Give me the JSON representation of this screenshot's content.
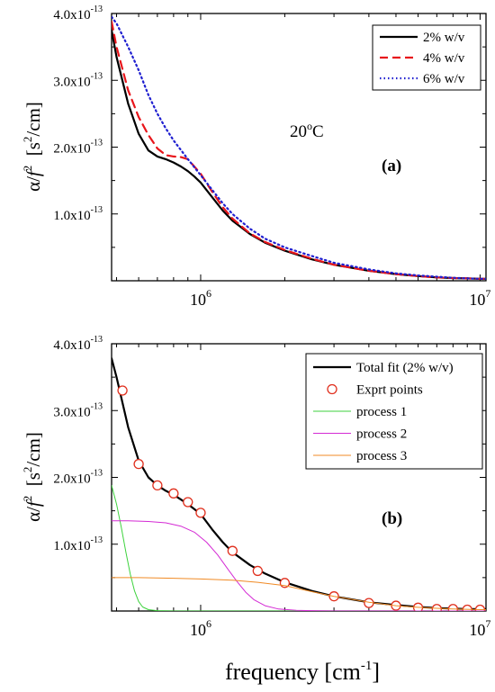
{
  "figure": {
    "xlabel_main": "frequency [cm",
    "xlabel_sup": "-1",
    "xlabel_end": "]"
  },
  "chart_data": [
    {
      "type": "line",
      "panel_label": "(a)",
      "annotation": "20",
      "annotation_sup": "o",
      "annotation_end": "C",
      "ylabel_prefix": "α/",
      "ylabel_f": "f",
      "ylabel_f_sup": "2",
      "ylabel_unit_open": "[s",
      "ylabel_unit_sup": "2",
      "ylabel_unit_end": "/cm]",
      "x_scale": "log",
      "xlim": [
        480000,
        10500000
      ],
      "ylim": [
        0,
        4e-13
      ],
      "x_ticks": [
        {
          "value": 1000000,
          "base": "10",
          "exp": "6"
        },
        {
          "value": 10000000,
          "base": "10",
          "exp": "7"
        }
      ],
      "y_ticks": [
        {
          "value": 1e-13,
          "mant": "1.0x10",
          "exp": "-13"
        },
        {
          "value": 2e-13,
          "mant": "2.0x10",
          "exp": "-13"
        },
        {
          "value": 3e-13,
          "mant": "3.0x10",
          "exp": "-13"
        },
        {
          "value": 4e-13,
          "mant": "4.0x10",
          "exp": "-13"
        }
      ],
      "legend_position": "top-right",
      "series": [
        {
          "name": "2% w/v",
          "color": "#000000",
          "style": "solid",
          "x": [
            480000,
            500000,
            550000,
            600000,
            650000,
            700000,
            750000,
            800000,
            850000,
            900000,
            950000,
            1000000,
            1100000,
            1200000,
            1300000,
            1500000,
            1700000,
            2000000,
            2500000,
            3000000,
            4000000,
            5000000,
            6000000,
            7000000,
            8000000,
            9000000,
            10000000,
            10500000
          ],
          "y": [
            3.75e-13,
            3.35e-13,
            2.65e-13,
            2.2e-13,
            1.95e-13,
            1.86e-13,
            1.82e-13,
            1.77e-13,
            1.71e-13,
            1.64e-13,
            1.56e-13,
            1.47e-13,
            1.25e-13,
            1.05e-13,
            9e-14,
            7e-14,
            5.7e-14,
            4.5e-14,
            3.2e-14,
            2.4e-14,
            1.5e-14,
            1e-14,
            7e-15,
            5e-15,
            4e-15,
            3.5e-15,
            3e-15,
            3e-15
          ]
        },
        {
          "name": "4% w/v",
          "color": "#e8151b",
          "style": "dashed",
          "x": [
            480000,
            500000,
            550000,
            600000,
            650000,
            700000,
            750000,
            800000,
            850000,
            900000,
            1000000,
            1100000,
            1200000,
            1300000,
            1500000,
            1700000,
            2000000,
            2500000,
            3000000,
            4000000,
            5000000,
            6000000,
            7000000,
            8000000,
            9000000,
            10000000,
            10500000
          ],
          "y": [
            3.88e-13,
            3.5e-13,
            2.85e-13,
            2.45e-13,
            2.18e-13,
            1.98e-13,
            1.88e-13,
            1.86e-13,
            1.85e-13,
            1.82e-13,
            1.6e-13,
            1.33e-13,
            1.1e-13,
            9.3e-14,
            7.1e-14,
            5.8e-14,
            4.6e-14,
            3.3e-14,
            2.4e-14,
            1.5e-14,
            1e-14,
            7e-15,
            5e-15,
            4e-15,
            3.5e-15,
            3e-15,
            3e-15
          ]
        },
        {
          "name": "6% w/v",
          "color": "#1f1fd0",
          "style": "dotted",
          "x": [
            480000,
            500000,
            550000,
            600000,
            650000,
            700000,
            750000,
            800000,
            900000,
            1000000,
            1100000,
            1200000,
            1300000,
            1500000,
            1700000,
            2000000,
            2500000,
            3000000,
            4000000,
            5000000,
            6000000,
            7000000,
            8000000,
            9000000,
            10000000,
            10500000
          ],
          "y": [
            3.95e-13,
            3.85e-13,
            3.5e-13,
            3.15e-13,
            2.78e-13,
            2.5e-13,
            2.28e-13,
            2.1e-13,
            1.82e-13,
            1.58e-13,
            1.36e-13,
            1.16e-13,
            1e-13,
            7.8e-14,
            6.3e-14,
            5e-14,
            3.7e-14,
            2.7e-14,
            1.7e-14,
            1.1e-14,
            8e-15,
            6e-15,
            4.5e-15,
            3.5e-15,
            3e-15,
            3e-15
          ]
        }
      ]
    },
    {
      "type": "line",
      "panel_label": "(b)",
      "ylabel_prefix": "α/",
      "ylabel_f": "f",
      "ylabel_f_sup": "2",
      "ylabel_unit_open": "[s",
      "ylabel_unit_sup": "2",
      "ylabel_unit_end": "/cm]",
      "x_scale": "log",
      "xlim": [
        480000,
        10500000
      ],
      "ylim": [
        0,
        4e-13
      ],
      "x_ticks": [
        {
          "value": 1000000,
          "base": "10",
          "exp": "6"
        },
        {
          "value": 10000000,
          "base": "10",
          "exp": "7"
        }
      ],
      "y_ticks": [
        {
          "value": 1e-13,
          "mant": "1.0x10",
          "exp": "-13"
        },
        {
          "value": 2e-13,
          "mant": "2.0x10",
          "exp": "-13"
        },
        {
          "value": 3e-13,
          "mant": "3.0x10",
          "exp": "-13"
        },
        {
          "value": 4e-13,
          "mant": "4.0x10",
          "exp": "-13"
        }
      ],
      "legend_position": "top-right",
      "series": [
        {
          "name": "Total fit (2% w/v)",
          "color": "#000000",
          "style": "solid",
          "width": 2.2,
          "x": [
            480000,
            500000,
            550000,
            600000,
            650000,
            700000,
            750000,
            800000,
            900000,
            1000000,
            1100000,
            1200000,
            1300000,
            1500000,
            1700000,
            2000000,
            2500000,
            3000000,
            4000000,
            5000000,
            6000000,
            7000000,
            8000000,
            9000000,
            10000000,
            10500000
          ],
          "y": [
            3.78e-13,
            3.5e-13,
            2.75e-13,
            2.25e-13,
            2e-13,
            1.88e-13,
            1.8e-13,
            1.74e-13,
            1.6e-13,
            1.45e-13,
            1.22e-13,
            1.03e-13,
            8.8e-14,
            6.9e-14,
            5.6e-14,
            4.3e-14,
            3e-14,
            2.2e-14,
            1.3e-14,
            9e-15,
            6e-15,
            4.5e-15,
            3.5e-15,
            3e-15,
            3e-15,
            3e-15
          ]
        },
        {
          "name": "Exprt points",
          "color": "#e0301e",
          "style": "markers",
          "x": [
            525000,
            600000,
            700000,
            800000,
            900000,
            1000000,
            1300000,
            1600000,
            2000000,
            3000000,
            4000000,
            5000000,
            6000000,
            7000000,
            8000000,
            9000000,
            10000000
          ],
          "y": [
            3.3e-13,
            2.2e-13,
            1.88e-13,
            1.76e-13,
            1.63e-13,
            1.47e-13,
            9e-14,
            6e-14,
            4.2e-14,
            2.2e-14,
            1.2e-14,
            8e-15,
            5e-15,
            3e-15,
            3e-15,
            2e-15,
            2e-15
          ]
        },
        {
          "name": "process 1",
          "color": "#3cd23c",
          "style": "solid",
          "width": 1,
          "x": [
            480000,
            500000,
            520000,
            540000,
            560000,
            580000,
            600000,
            620000,
            650000,
            700000,
            800000,
            1000000,
            10500000
          ],
          "y": [
            1.88e-13,
            1.6e-13,
            1.25e-13,
            8.8e-14,
            5.5e-14,
            3e-14,
            1.4e-14,
            6e-15,
            2e-15,
            5e-16,
            0.0,
            0.0,
            0.0
          ]
        },
        {
          "name": "process 2",
          "color": "#d42ad4",
          "style": "solid",
          "width": 1,
          "x": [
            480000,
            550000,
            650000,
            750000,
            850000,
            950000,
            1050000,
            1150000,
            1250000,
            1350000,
            1450000,
            1550000,
            1700000,
            1900000,
            2200000,
            2600000,
            3000000,
            10500000
          ],
          "y": [
            1.35e-13,
            1.35e-13,
            1.34e-13,
            1.32e-13,
            1.27e-13,
            1.18e-13,
            1.03e-13,
            8.4e-14,
            6.3e-14,
            4.4e-14,
            2.8e-14,
            1.7e-14,
            8e-15,
            3e-15,
            1e-15,
            3e-16,
            0.0,
            0.0
          ]
        },
        {
          "name": "process 3",
          "color": "#f08a24",
          "style": "solid",
          "width": 1,
          "x": [
            480000,
            600000,
            800000,
            1000000,
            1300000,
            1600000,
            2000000,
            2500000,
            3000000,
            4000000,
            5000000,
            6000000,
            7000000,
            8000000,
            10000000,
            10500000
          ],
          "y": [
            5e-14,
            5e-14,
            4.9e-14,
            4.8e-14,
            4.6e-14,
            4.3e-14,
            3.8e-14,
            2.9e-14,
            2.2e-14,
            1.3e-14,
            8e-15,
            5.5e-15,
            4e-15,
            3e-15,
            2e-15,
            2e-15
          ]
        }
      ]
    }
  ]
}
